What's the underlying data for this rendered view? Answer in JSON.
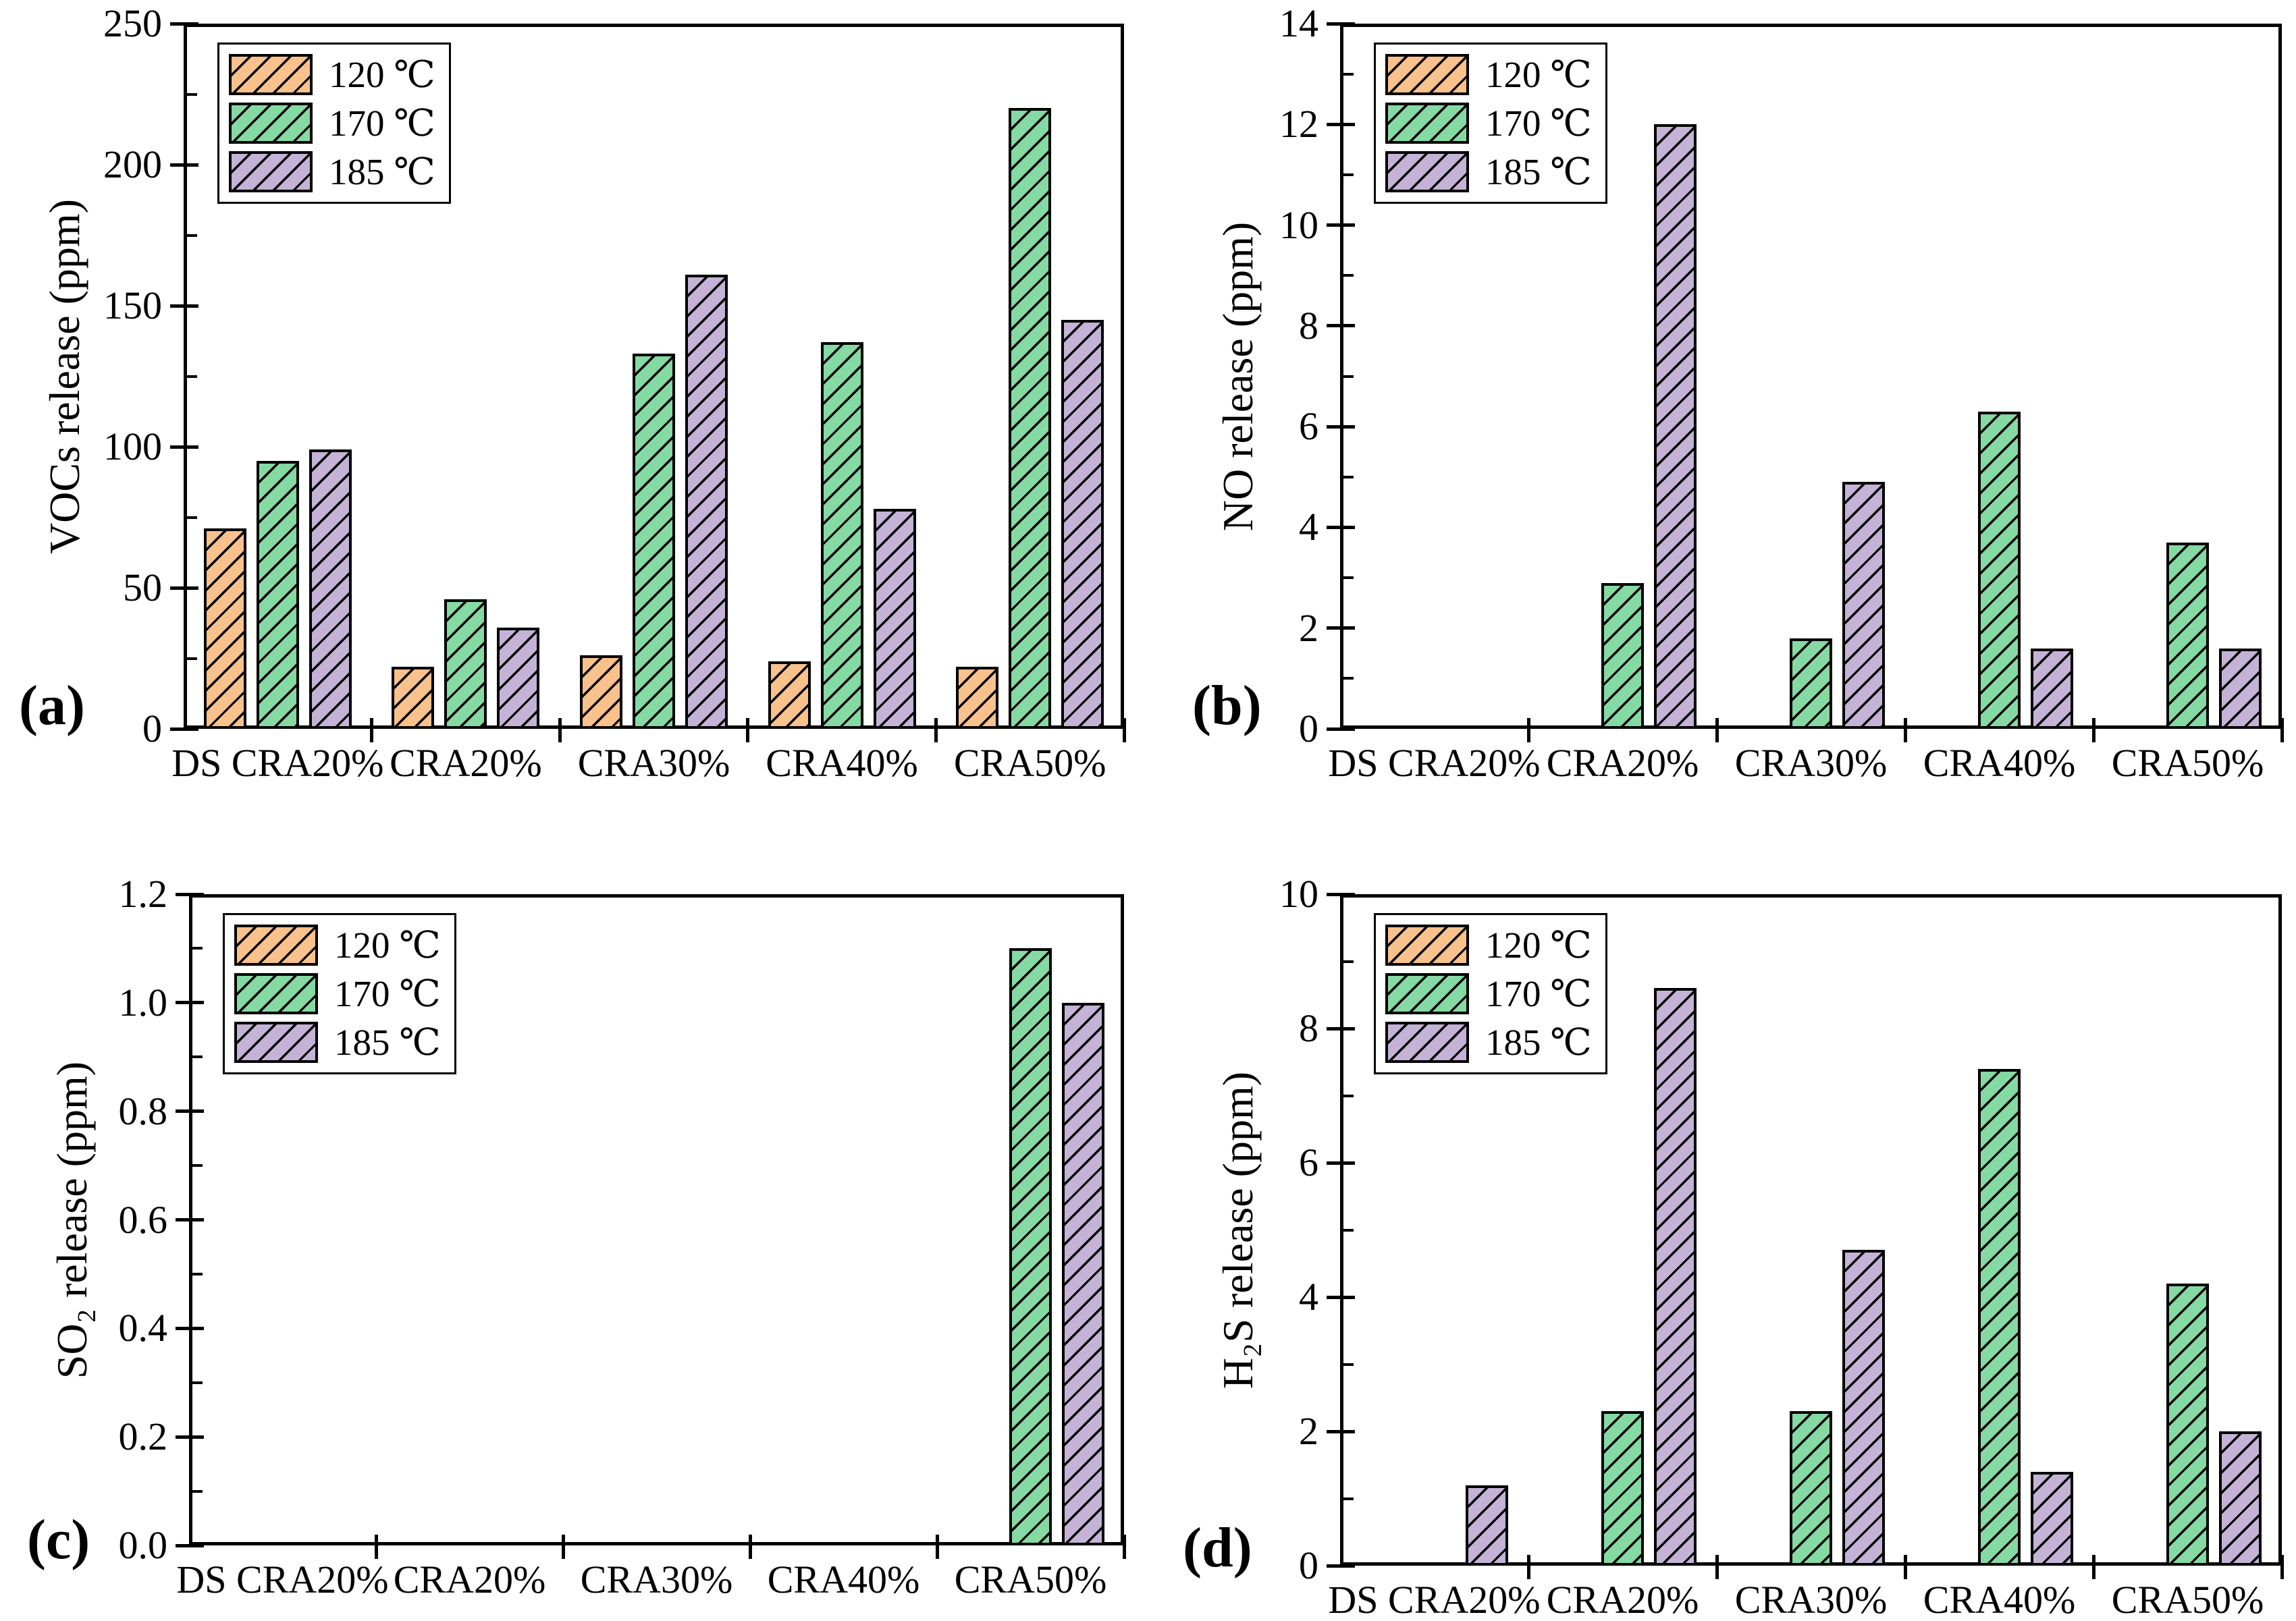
{
  "figure": {
    "background": "#FFFFFF",
    "hatch_direction": "forward-diagonal",
    "bar_outline_color": "#000000"
  },
  "chart_data": [
    {
      "id": "a",
      "type": "bar",
      "panel_label": "(a)",
      "ylabel": "VOCs release (ppm)",
      "categories": [
        "DS CRA20%",
        "CRA20%",
        "CRA30%",
        "CRA40%",
        "CRA50%"
      ],
      "series": [
        {
          "name": "120 ℃",
          "color": "#F9C18C",
          "values": [
            71,
            22,
            26,
            24,
            22
          ]
        },
        {
          "name": "170 ℃",
          "color": "#85D9A3",
          "values": [
            95,
            46,
            133,
            137,
            220
          ]
        },
        {
          "name": "185 ℃",
          "color": "#C4B3D6",
          "values": [
            99,
            36,
            161,
            78,
            145
          ]
        }
      ],
      "ylim": [
        0,
        250
      ],
      "ymajor": 50,
      "yminor": 25,
      "ydecimals": 0,
      "legend_position": "top-left",
      "grid": false
    },
    {
      "id": "b",
      "type": "bar",
      "panel_label": "(b)",
      "ylabel": "NO release (ppm)",
      "categories": [
        "DS CRA20%",
        "CRA20%",
        "CRA30%",
        "CRA40%",
        "CRA50%"
      ],
      "series": [
        {
          "name": "120 ℃",
          "color": "#F9C18C",
          "values": [
            0,
            0,
            0,
            0,
            0
          ]
        },
        {
          "name": "170 ℃",
          "color": "#85D9A3",
          "values": [
            0,
            2.9,
            1.8,
            6.3,
            3.7
          ]
        },
        {
          "name": "185 ℃",
          "color": "#C4B3D6",
          "values": [
            0,
            12,
            4.9,
            1.6,
            1.6
          ]
        }
      ],
      "ylim": [
        0,
        14
      ],
      "ymajor": 2,
      "yminor": 1,
      "ydecimals": 0,
      "legend_position": "top-left",
      "grid": false
    },
    {
      "id": "c",
      "type": "bar",
      "panel_label": "(c)",
      "ylabel": "SO₂ release (ppm)",
      "categories": [
        "DS CRA20%",
        "CRA20%",
        "CRA30%",
        "CRA40%",
        "CRA50%"
      ],
      "series": [
        {
          "name": "120 ℃",
          "color": "#F9C18C",
          "values": [
            0,
            0,
            0,
            0,
            0
          ]
        },
        {
          "name": "170 ℃",
          "color": "#85D9A3",
          "values": [
            0,
            0,
            0,
            0,
            1.1
          ]
        },
        {
          "name": "185 ℃",
          "color": "#C4B3D6",
          "values": [
            0,
            0,
            0,
            0,
            1.0
          ]
        }
      ],
      "ylim": [
        0,
        1.2
      ],
      "ymajor": 0.2,
      "yminor": 0.1,
      "ydecimals": 1,
      "legend_position": "top-left",
      "grid": false
    },
    {
      "id": "d",
      "type": "bar",
      "panel_label": "(d)",
      "ylabel": "H₂S release (ppm)",
      "categories": [
        "DS CRA20%",
        "CRA20%",
        "CRA30%",
        "CRA40%",
        "CRA50%"
      ],
      "series": [
        {
          "name": "120 ℃",
          "color": "#F9C18C",
          "values": [
            0,
            0,
            0,
            0,
            0
          ]
        },
        {
          "name": "170 ℃",
          "color": "#85D9A3",
          "values": [
            0,
            2.3,
            2.3,
            7.4,
            4.2
          ]
        },
        {
          "name": "185 ℃",
          "color": "#C4B3D6",
          "values": [
            1.2,
            8.6,
            4.7,
            1.4,
            2.0
          ]
        }
      ],
      "ylim": [
        0,
        10
      ],
      "ymajor": 2,
      "yminor": 1,
      "ydecimals": 0,
      "legend_position": "top-left",
      "grid": false
    }
  ]
}
